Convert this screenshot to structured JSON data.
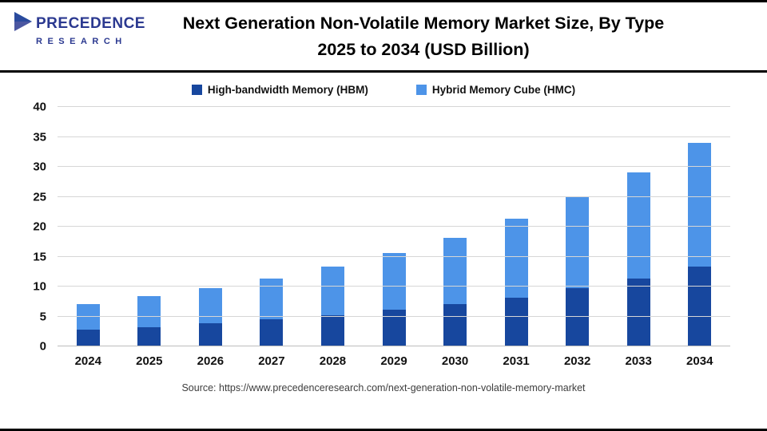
{
  "header": {
    "logo_name": "PRECEDENCE",
    "logo_sub": "RESEARCH",
    "title_line1": "Next Generation Non-Volatile Memory Market Size, By Type",
    "title_line2": "2025 to 2034 (USD Billion)"
  },
  "footer": {
    "source": "Source: https://www.precedenceresearch.com/next-generation-non-volatile-memory-market"
  },
  "chart_data": {
    "type": "bar",
    "stacked": true,
    "title": "Next Generation Non-Volatile Memory Market Size, By Type 2025 to 2034 (USD Billion)",
    "categories": [
      "2024",
      "2025",
      "2026",
      "2027",
      "2028",
      "2029",
      "2030",
      "2031",
      "2032",
      "2033",
      "2034"
    ],
    "series": [
      {
        "name": "High-bandwidth Memory (HBM)",
        "color": "#17479E",
        "values": [
          2.8,
          3.2,
          3.9,
          4.6,
          5.2,
          6.1,
          7.1,
          8.2,
          9.7,
          11.3,
          13.3
        ]
      },
      {
        "name": "Hybrid Memory Cube (HMC)",
        "color": "#4D94E8",
        "values": [
          4.3,
          5.2,
          5.9,
          6.8,
          8.1,
          9.5,
          11.1,
          13.1,
          15.3,
          17.8,
          20.7
        ]
      }
    ],
    "totals": [
      7.1,
      8.4,
      9.8,
      11.4,
      13.3,
      15.6,
      18.2,
      21.3,
      25.0,
      29.1,
      34.0
    ],
    "xlabel": "",
    "ylabel": "",
    "ylim": [
      0,
      40
    ],
    "yticks": [
      0,
      5,
      10,
      15,
      20,
      25,
      30,
      35,
      40
    ],
    "grid": true,
    "legend_position": "top"
  }
}
